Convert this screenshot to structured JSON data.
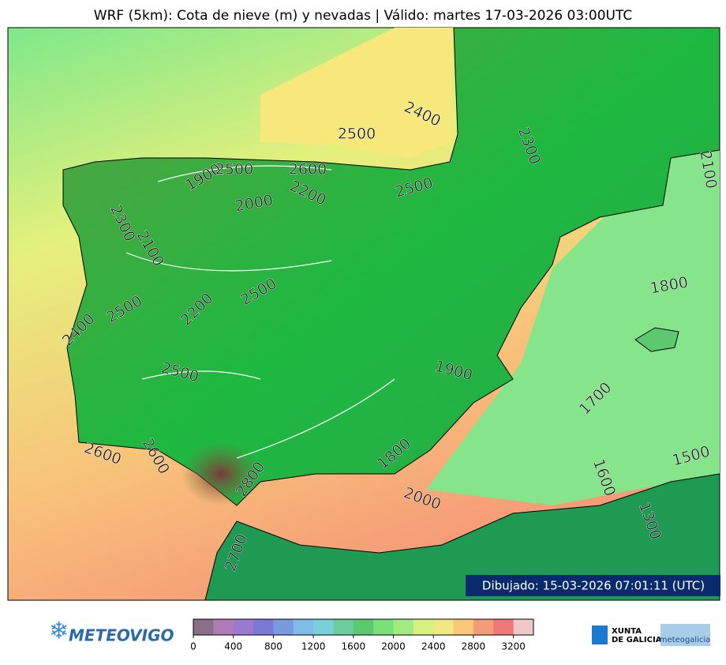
{
  "header": {
    "title": "WRF (5km): Cota de nieve (m) y nevadas | Válido: martes 17-03-2026 03:00UTC"
  },
  "map": {
    "contour_labels": [
      "2500",
      "2400",
      "2300",
      "2100",
      "1900",
      "2500",
      "2600",
      "2200",
      "2500",
      "2000",
      "2300",
      "2100",
      "2500",
      "2200",
      "2500",
      "2400",
      "1800",
      "2500",
      "1900",
      "1700",
      "2600",
      "2600",
      "1800",
      "2800",
      "1500",
      "1600",
      "2000",
      "1300",
      "2700"
    ],
    "drawn": "Dibujado: 15-03-2026 07:01:11 (UTC)"
  },
  "colorbar": {
    "lim": [
      0,
      3400
    ],
    "ticks": [
      0,
      400,
      800,
      1200,
      1600,
      2000,
      2400,
      2800,
      3200
    ],
    "colors": [
      "#8a6f8a",
      "#b07ab8",
      "#9a7ad0",
      "#7b78d8",
      "#7a9ae0",
      "#80bce8",
      "#7ad0d8",
      "#6ccc9c",
      "#5cc870",
      "#7ae07a",
      "#a0ec80",
      "#d8f080",
      "#f0e880",
      "#f8c878",
      "#f49c78",
      "#ee7878",
      "#f0c8c8"
    ]
  },
  "footer": {
    "left_logo": "METEOVIGO",
    "xunta": "XUNTA",
    "galicia": "DE GALICIA",
    "meteogalicia": "meteogalicia"
  }
}
